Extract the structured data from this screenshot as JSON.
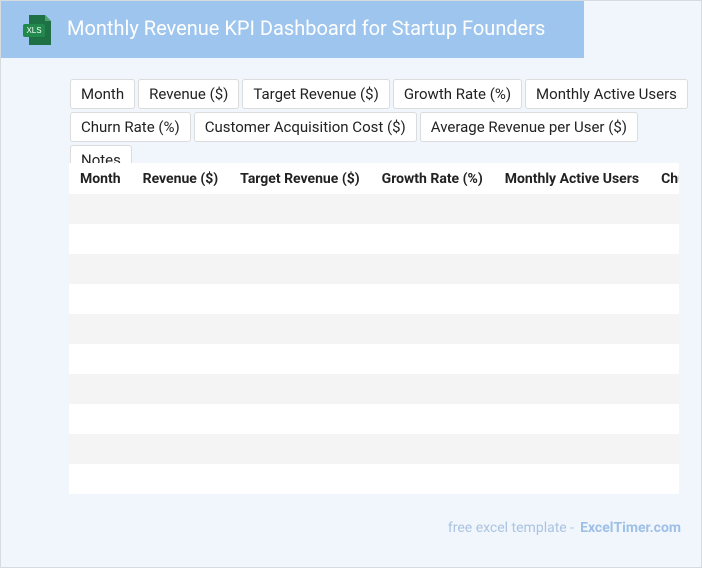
{
  "header": {
    "icon_label": "XLS",
    "title": "Monthly Revenue KPI Dashboard for Startup Founders"
  },
  "chips": [
    "Month",
    "Revenue ($)",
    "Target Revenue ($)",
    "Growth Rate (%)",
    "Monthly Active Users",
    "Churn Rate (%)",
    "Customer Acquisition Cost ($)",
    "Average Revenue per User ($)",
    "Notes"
  ],
  "table": {
    "headers": [
      "Month",
      "Revenue ($)",
      "Target Revenue ($)",
      "Growth Rate (%)",
      "Monthly Active Users",
      "Churn Rate (%)"
    ]
  },
  "footer": {
    "text": "free excel template -",
    "link": "ExcelTimer.com"
  }
}
